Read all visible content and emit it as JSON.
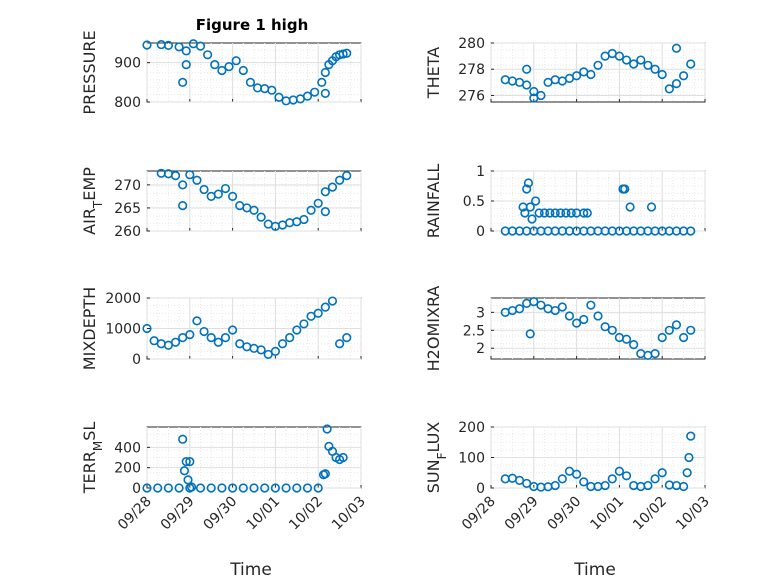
{
  "chart_data": [
    {
      "type": "scatter",
      "name": "pressure",
      "title": "Figure 1 high",
      "ylabel": "PRESSURE",
      "xlabel": "",
      "ylim": [
        800,
        950
      ],
      "yticks": [
        800,
        900
      ],
      "color": "#0072BD",
      "x": [
        "09/28 00:00",
        "09/28 08:00",
        "09/28 12:00",
        "09/28 18:00",
        "09/28 22:00",
        "09/29 02:00",
        "09/29 06:00",
        "09/29 10:00",
        "09/29 14:00",
        "09/29 18:00",
        "09/29 22:00",
        "09/30 02:00",
        "09/30 06:00",
        "09/30 10:00",
        "09/30 14:00",
        "09/30 18:00",
        "09/30 22:00",
        "10/01 02:00",
        "10/01 06:00",
        "10/01 10:00",
        "10/01 14:00",
        "10/01 18:00",
        "10/01 22:00",
        "10/02 02:00",
        "10/02 04:00",
        "10/02 06:00",
        "10/02 08:00",
        "10/02 10:00",
        "10/02 12:00",
        "10/02 14:00",
        "10/02 16:00",
        "09/28 20:00",
        "09/28 22:00",
        "10/02 04:00"
      ],
      "y": [
        945,
        946,
        944,
        940,
        930,
        948,
        942,
        920,
        895,
        880,
        890,
        905,
        880,
        850,
        836,
        834,
        830,
        812,
        803,
        805,
        808,
        815,
        825,
        850,
        875,
        895,
        905,
        915,
        920,
        922,
        924,
        850,
        895,
        822
      ]
    },
    {
      "type": "scatter",
      "name": "theta",
      "title": "",
      "ylabel": "THETA",
      "xlabel": "",
      "ylim": [
        275.5,
        280
      ],
      "yticks": [
        276,
        278,
        280
      ],
      "color": "#0072BD",
      "x": [
        "09/28 08:00",
        "09/28 12:00",
        "09/28 16:00",
        "09/28 20:00",
        "09/29 00:00",
        "09/29 04:00",
        "09/29 08:00",
        "09/29 12:00",
        "09/29 16:00",
        "09/29 20:00",
        "09/30 00:00",
        "09/30 04:00",
        "09/30 08:00",
        "09/30 12:00",
        "09/30 16:00",
        "09/30 20:00",
        "10/01 00:00",
        "10/01 04:00",
        "10/01 08:00",
        "10/01 12:00",
        "10/01 16:00",
        "10/01 20:00",
        "10/02 00:00",
        "10/02 04:00",
        "10/02 08:00",
        "10/02 12:00",
        "10/02 16:00",
        "09/28 20:00",
        "09/29 00:00",
        "10/02 08:00"
      ],
      "y": [
        277.2,
        277.1,
        277.0,
        276.8,
        276.3,
        276.0,
        277.0,
        277.2,
        277.1,
        277.3,
        277.5,
        277.8,
        277.6,
        278.3,
        279.0,
        279.2,
        279.0,
        278.7,
        278.4,
        278.7,
        278.3,
        278.0,
        277.6,
        276.5,
        276.9,
        277.5,
        278.4,
        278.0,
        275.8,
        279.6
      ]
    },
    {
      "type": "scatter",
      "name": "air-temp",
      "title": "",
      "ylabel": "AIR_TEMP",
      "xlabel": "",
      "ylim": [
        260,
        273
      ],
      "yticks": [
        260,
        265,
        270
      ],
      "color": "#0072BD",
      "x": [
        "09/28 08:00",
        "09/28 12:00",
        "09/28 16:00",
        "09/28 20:00",
        "09/29 00:00",
        "09/29 04:00",
        "09/29 08:00",
        "09/29 12:00",
        "09/29 16:00",
        "09/29 20:00",
        "09/30 00:00",
        "09/30 04:00",
        "09/30 08:00",
        "09/30 12:00",
        "09/30 16:00",
        "09/30 20:00",
        "10/01 00:00",
        "10/01 04:00",
        "10/01 08:00",
        "10/01 12:00",
        "10/01 16:00",
        "10/01 20:00",
        "10/02 00:00",
        "10/02 04:00",
        "10/02 08:00",
        "10/02 12:00",
        "10/02 16:00",
        "09/28 20:00",
        "10/02 04:00"
      ],
      "y": [
        272.5,
        272.4,
        272.0,
        270.0,
        272.2,
        271.0,
        269.0,
        267.5,
        268.0,
        269.2,
        267.5,
        265.5,
        265.0,
        264.5,
        263.0,
        261.5,
        261.0,
        261.3,
        261.8,
        262.0,
        262.5,
        264.5,
        266.0,
        268.5,
        269.5,
        271.0,
        272.0,
        265.5,
        264.2
      ]
    },
    {
      "type": "scatter",
      "name": "rainfall",
      "title": "",
      "ylabel": "RAINFALL",
      "xlabel": "",
      "ylim": [
        0,
        1
      ],
      "yticks": [
        0,
        0.5,
        1
      ],
      "color": "#0072BD",
      "x": [
        "09/28 08:00",
        "09/28 12:00",
        "09/28 16:00",
        "09/28 20:00",
        "09/29 00:00",
        "09/29 04:00",
        "09/29 08:00",
        "09/29 12:00",
        "09/29 16:00",
        "09/29 20:00",
        "09/30 00:00",
        "09/30 04:00",
        "09/30 08:00",
        "09/30 12:00",
        "09/30 16:00",
        "09/30 20:00",
        "10/01 00:00",
        "10/01 04:00",
        "10/01 08:00",
        "10/01 12:00",
        "10/01 16:00",
        "10/01 20:00",
        "10/02 00:00",
        "10/02 04:00",
        "10/02 08:00",
        "10/02 12:00",
        "10/02 16:00",
        "09/28 18:00",
        "09/28 19:00",
        "09/28 20:00",
        "09/28 21:00",
        "09/28 22:00",
        "09/28 23:00",
        "09/29 01:00",
        "09/29 03:00",
        "09/29 06:00",
        "09/29 09:00",
        "09/29 12:00",
        "09/29 15:00",
        "09/29 18:00",
        "09/29 21:00",
        "09/30 00:00",
        "09/30 04:00",
        "09/30 06:00",
        "10/01 02:00",
        "10/01 03:00",
        "10/01 06:00",
        "10/01 18:00"
      ],
      "y": [
        0,
        0,
        0,
        0,
        0,
        0,
        0,
        0,
        0,
        0,
        0,
        0,
        0,
        0,
        0,
        0,
        0,
        0,
        0,
        0,
        0,
        0,
        0,
        0,
        0,
        0,
        0,
        0.4,
        0.3,
        0.7,
        0.8,
        0.4,
        0.2,
        0.5,
        0.3,
        0.3,
        0.3,
        0.3,
        0.3,
        0.3,
        0.3,
        0.3,
        0.3,
        0.3,
        0.7,
        0.7,
        0.4,
        0.4
      ]
    },
    {
      "type": "scatter",
      "name": "mixdepth",
      "title": "",
      "ylabel": "MIXDEPTH",
      "xlabel": "",
      "ylim": [
        0,
        2000
      ],
      "yticks": [
        0,
        1000,
        2000
      ],
      "color": "#0072BD",
      "x": [
        "09/28 00:00",
        "09/28 04:00",
        "09/28 08:00",
        "09/28 12:00",
        "09/28 16:00",
        "09/28 20:00",
        "09/29 00:00",
        "09/29 04:00",
        "09/29 08:00",
        "09/29 12:00",
        "09/29 16:00",
        "09/29 20:00",
        "09/30 00:00",
        "09/30 04:00",
        "09/30 08:00",
        "09/30 12:00",
        "09/30 16:00",
        "09/30 20:00",
        "10/01 00:00",
        "10/01 04:00",
        "10/01 08:00",
        "10/01 12:00",
        "10/01 16:00",
        "10/01 20:00",
        "10/02 00:00",
        "10/02 04:00",
        "10/02 08:00",
        "10/02 12:00",
        "10/02 16:00"
      ],
      "y": [
        1000,
        600,
        500,
        450,
        550,
        700,
        800,
        1250,
        900,
        700,
        550,
        700,
        950,
        500,
        400,
        350,
        300,
        150,
        250,
        500,
        700,
        950,
        1150,
        1400,
        1500,
        1700,
        1900,
        500,
        700
      ]
    },
    {
      "type": "scatter",
      "name": "h2omixra",
      "title": "",
      "ylabel": "H2OMIXRA",
      "xlabel": "",
      "ylim": [
        1.7,
        3.4
      ],
      "yticks": [
        2,
        2.5,
        3
      ],
      "color": "#0072BD",
      "x": [
        "09/28 08:00",
        "09/28 12:00",
        "09/28 16:00",
        "09/28 20:00",
        "09/29 00:00",
        "09/29 04:00",
        "09/29 08:00",
        "09/29 12:00",
        "09/29 16:00",
        "09/29 20:00",
        "09/30 00:00",
        "09/30 04:00",
        "09/30 08:00",
        "09/30 12:00",
        "09/30 16:00",
        "09/30 20:00",
        "10/01 00:00",
        "10/01 04:00",
        "10/01 08:00",
        "10/01 12:00",
        "10/01 16:00",
        "10/01 20:00",
        "10/02 00:00",
        "10/02 04:00",
        "10/02 08:00",
        "10/02 12:00",
        "10/02 16:00",
        "09/28 22:00"
      ],
      "y": [
        3.0,
        3.05,
        3.1,
        3.25,
        3.3,
        3.2,
        3.1,
        3.05,
        3.15,
        2.9,
        2.7,
        2.8,
        3.2,
        2.9,
        2.6,
        2.5,
        2.3,
        2.25,
        2.1,
        1.85,
        1.8,
        1.85,
        2.3,
        2.5,
        2.65,
        2.3,
        2.5,
        2.4
      ]
    },
    {
      "type": "scatter",
      "name": "terr-msl",
      "title": "",
      "ylabel": "TERR_MSL",
      "xlabel": "Time",
      "ylim": [
        0,
        600
      ],
      "yticks": [
        0,
        200,
        400
      ],
      "color": "#0072BD",
      "x": [
        "09/28 00:00",
        "09/28 06:00",
        "09/28 12:00",
        "09/28 18:00",
        "09/29 00:00",
        "09/29 06:00",
        "09/29 12:00",
        "09/29 18:00",
        "09/30 00:00",
        "09/30 06:00",
        "09/30 12:00",
        "09/30 18:00",
        "10/01 00:00",
        "10/01 06:00",
        "10/01 12:00",
        "10/01 18:00",
        "10/02 00:00",
        "09/28 20:00",
        "09/28 21:00",
        "09/28 22:00",
        "09/28 23:00",
        "09/29 00:00",
        "09/29 01:00",
        "10/02 03:00",
        "10/02 04:00",
        "10/02 05:00",
        "10/02 06:00",
        "10/02 08:00",
        "10/02 10:00",
        "10/02 12:00",
        "10/02 14:00"
      ],
      "y": [
        0,
        0,
        0,
        0,
        0,
        0,
        0,
        0,
        0,
        0,
        0,
        0,
        0,
        0,
        0,
        0,
        0,
        480,
        170,
        260,
        80,
        260,
        10,
        130,
        140,
        580,
        410,
        360,
        300,
        280,
        300
      ]
    },
    {
      "type": "scatter",
      "name": "sun-flux",
      "title": "",
      "ylabel": "SUN_FLUX",
      "xlabel": "Time",
      "ylim": [
        0,
        200
      ],
      "yticks": [
        0,
        100,
        200
      ],
      "color": "#0072BD",
      "x": [
        "09/28 08:00",
        "09/28 12:00",
        "09/28 16:00",
        "09/28 20:00",
        "09/29 00:00",
        "09/29 04:00",
        "09/29 08:00",
        "09/29 12:00",
        "09/29 16:00",
        "09/29 20:00",
        "09/30 00:00",
        "09/30 04:00",
        "09/30 08:00",
        "09/30 12:00",
        "09/30 16:00",
        "09/30 20:00",
        "10/01 00:00",
        "10/01 04:00",
        "10/01 08:00",
        "10/01 12:00",
        "10/01 16:00",
        "10/01 20:00",
        "10/02 00:00",
        "10/02 04:00",
        "10/02 08:00",
        "10/02 12:00",
        "10/02 14:00",
        "10/02 15:00",
        "10/02 16:00"
      ],
      "y": [
        30,
        32,
        25,
        15,
        5,
        3,
        4,
        8,
        30,
        55,
        45,
        20,
        5,
        5,
        8,
        30,
        55,
        40,
        8,
        5,
        8,
        30,
        50,
        10,
        8,
        5,
        50,
        100,
        170
      ]
    }
  ],
  "x_axis": {
    "tick_labels": [
      "09/28",
      "09/29",
      "09/30",
      "10/01",
      "10/02",
      "10/03"
    ]
  }
}
